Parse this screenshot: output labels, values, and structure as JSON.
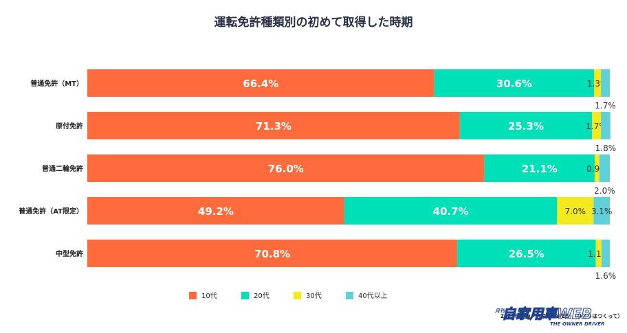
{
  "chart_data": {
    "type": "bar",
    "orientation": "horizontal",
    "stacked": true,
    "normalized": true,
    "title": "運転免許種類別の初めて取得した時期",
    "categories": [
      "普通免許（MT）",
      "原付免許",
      "普通二輪免許",
      "普通免許（AT限定）",
      "中型免許"
    ],
    "series": [
      {
        "name": "10代",
        "color": "#ff6b3d",
        "values": [
          66.4,
          71.3,
          76.0,
          49.2,
          70.8
        ],
        "labels": [
          "66.4%",
          "71.3%",
          "76.0%",
          "49.2%",
          "70.8%"
        ]
      },
      {
        "name": "20代",
        "color": "#00e0b8",
        "values": [
          30.6,
          25.3,
          21.1,
          40.7,
          26.5
        ],
        "labels": [
          "30.6%",
          "25.3%",
          "21.1%",
          "40.7%",
          "26.5%"
        ]
      },
      {
        "name": "30代",
        "color": "#f2ea1e",
        "values": [
          1.3,
          1.7,
          0.9,
          7.0,
          1.1
        ],
        "labels": [
          "1.3%",
          "1.7%",
          "0.9%",
          "7.0%",
          "1.1%"
        ]
      },
      {
        "name": "40代以上",
        "color": "#5fd0d8",
        "values": [
          1.7,
          1.8,
          2.0,
          3.1,
          1.6
        ],
        "labels": [
          "1.7%",
          "1.8%",
          "2.0%",
          "3.1%",
          "1.6%"
        ]
      }
    ],
    "xlim": [
      0,
      100
    ],
    "grid": false,
    "legend_position": "bottom"
  },
  "source_note": "2023年実施「自家用車WEB」（ひとりはつくって）",
  "logo": {
    "main": "自家用車WEB",
    "prefix": "月刊",
    "sub": "THE OWNER DRIVER"
  }
}
